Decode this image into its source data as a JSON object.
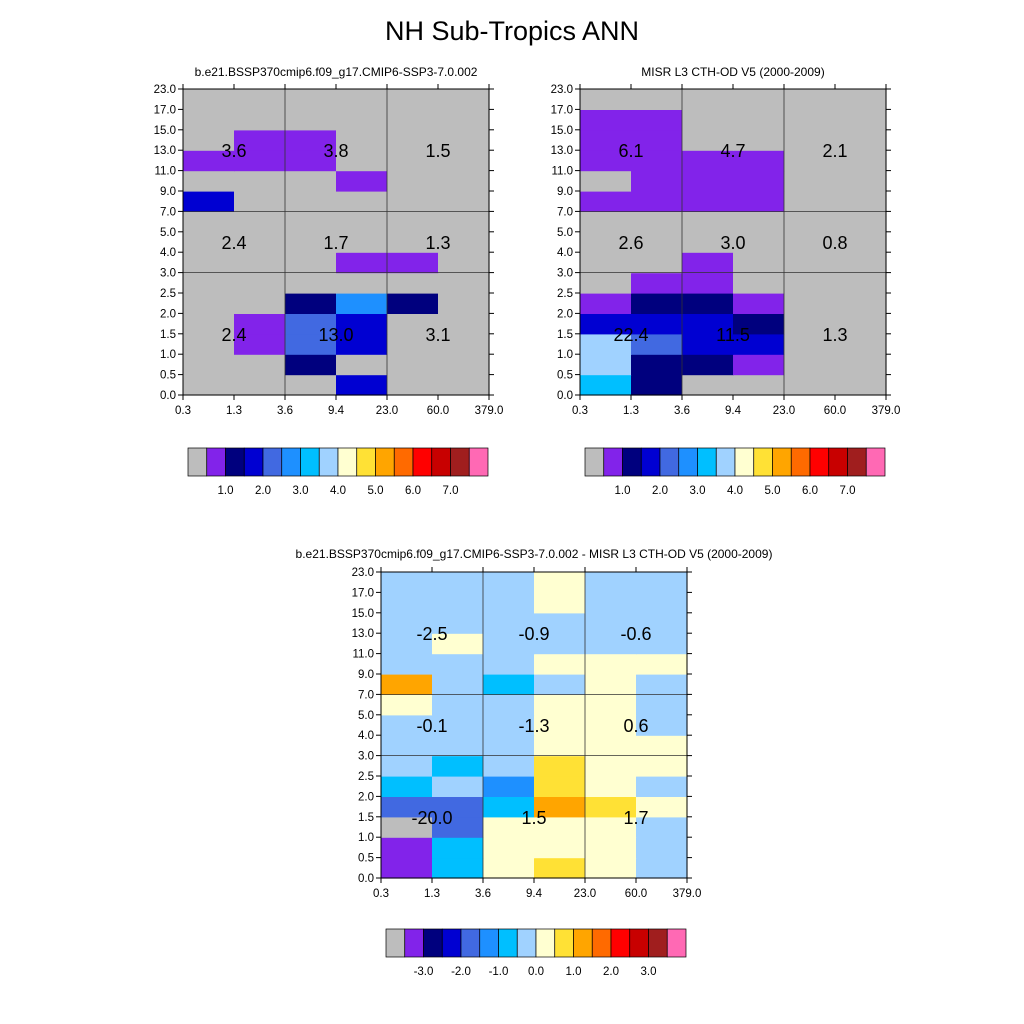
{
  "page_title": "NH Sub-Tropics ANN",
  "chart_data": [
    {
      "type": "heatmap",
      "title": "b.e21.BSSP370cmip6.f09_g17.CMIP6-SSP3-7.0.002",
      "x_ticks": [
        "0.3",
        "1.3",
        "3.6",
        "9.4",
        "23.0",
        "60.0",
        "379.0"
      ],
      "y_ticks": [
        "0.0",
        "0.5",
        "1.0",
        "1.5",
        "2.0",
        "2.5",
        "3.0",
        "4.0",
        "5.0",
        "7.0",
        "9.0",
        "11.0",
        "13.0",
        "15.0",
        "17.0",
        "23.0"
      ],
      "colorbar_labels": [
        "1.0",
        "2.0",
        "3.0",
        "4.0",
        "5.0",
        "6.0",
        "7.0"
      ],
      "colorbar_colors": [
        "#bdbdbd",
        "#8223ea",
        "#00007e",
        "#0000d2",
        "#4169e1",
        "#1e90ff",
        "#00bfff",
        "#a0d2ff",
        "#ffffd1",
        "#ffe135",
        "#ffa500",
        "#ff6a00",
        "#ff0000",
        "#c80000",
        "#a01e1e",
        "#ff69b4"
      ],
      "cells": [
        [
          0,
          0,
          0,
          3,
          0,
          0
        ],
        [
          0,
          0,
          2,
          0,
          0,
          0
        ],
        [
          0,
          1,
          4,
          3,
          0,
          0
        ],
        [
          0,
          1,
          4,
          3,
          0,
          0
        ],
        [
          0,
          0,
          2,
          5,
          2,
          0
        ],
        [
          0,
          0,
          0,
          0,
          0,
          0
        ],
        [
          0,
          0,
          0,
          1,
          1,
          0
        ],
        [
          0,
          0,
          0,
          0,
          0,
          0
        ],
        [
          0,
          0,
          0,
          0,
          0,
          0
        ],
        [
          3,
          0,
          0,
          0,
          0,
          0
        ],
        [
          0,
          0,
          0,
          1,
          0,
          0
        ],
        [
          1,
          1,
          1,
          0,
          0,
          0
        ],
        [
          0,
          1,
          1,
          0,
          0,
          0
        ],
        [
          0,
          0,
          0,
          0,
          0,
          0
        ],
        [
          0,
          0,
          0,
          0,
          0,
          0
        ]
      ],
      "block_values": [
        {
          "col": 0,
          "row": 0,
          "text": "2.4"
        },
        {
          "col": 1,
          "row": 0,
          "text": "13.0"
        },
        {
          "col": 2,
          "row": 0,
          "text": "3.1"
        },
        {
          "col": 0,
          "row": 1,
          "text": "2.4"
        },
        {
          "col": 1,
          "row": 1,
          "text": "1.7"
        },
        {
          "col": 2,
          "row": 1,
          "text": "1.3"
        },
        {
          "col": 0,
          "row": 2,
          "text": "3.6"
        },
        {
          "col": 1,
          "row": 2,
          "text": "3.8"
        },
        {
          "col": 2,
          "row": 2,
          "text": "1.5"
        }
      ]
    },
    {
      "type": "heatmap",
      "title": "MISR L3 CTH-OD V5 (2000-2009)",
      "x_ticks": [
        "0.3",
        "1.3",
        "3.6",
        "9.4",
        "23.0",
        "60.0",
        "379.0"
      ],
      "y_ticks": [
        "0.0",
        "0.5",
        "1.0",
        "1.5",
        "2.0",
        "2.5",
        "3.0",
        "4.0",
        "5.0",
        "7.0",
        "9.0",
        "11.0",
        "13.0",
        "15.0",
        "17.0",
        "23.0"
      ],
      "colorbar_labels": [
        "1.0",
        "2.0",
        "3.0",
        "4.0",
        "5.0",
        "6.0",
        "7.0"
      ],
      "colorbar_colors": [
        "#bdbdbd",
        "#8223ea",
        "#00007e",
        "#0000d2",
        "#4169e1",
        "#1e90ff",
        "#00bfff",
        "#a0d2ff",
        "#ffffd1",
        "#ffe135",
        "#ffa500",
        "#ff6a00",
        "#ff0000",
        "#c80000",
        "#a01e1e",
        "#ff69b4"
      ],
      "cells": [
        [
          6,
          2,
          0,
          0,
          0,
          0
        ],
        [
          7,
          2,
          2,
          1,
          0,
          0
        ],
        [
          7,
          4,
          3,
          3,
          0,
          0
        ],
        [
          3,
          3,
          3,
          2,
          0,
          0
        ],
        [
          1,
          2,
          2,
          1,
          0,
          0
        ],
        [
          0,
          1,
          1,
          0,
          0,
          0
        ],
        [
          0,
          0,
          1,
          0,
          0,
          0
        ],
        [
          0,
          0,
          0,
          0,
          0,
          0
        ],
        [
          0,
          0,
          0,
          0,
          0,
          0
        ],
        [
          1,
          1,
          1,
          1,
          0,
          0
        ],
        [
          0,
          1,
          1,
          1,
          0,
          0
        ],
        [
          1,
          1,
          1,
          1,
          0,
          0
        ],
        [
          1,
          1,
          0,
          0,
          0,
          0
        ],
        [
          1,
          1,
          0,
          0,
          0,
          0
        ],
        [
          0,
          0,
          0,
          0,
          0,
          0
        ]
      ],
      "block_values": [
        {
          "col": 0,
          "row": 0,
          "text": "22.4"
        },
        {
          "col": 1,
          "row": 0,
          "text": "11.5"
        },
        {
          "col": 2,
          "row": 0,
          "text": "1.3"
        },
        {
          "col": 0,
          "row": 1,
          "text": "2.6"
        },
        {
          "col": 1,
          "row": 1,
          "text": "3.0"
        },
        {
          "col": 2,
          "row": 1,
          "text": "0.8"
        },
        {
          "col": 0,
          "row": 2,
          "text": "6.1"
        },
        {
          "col": 1,
          "row": 2,
          "text": "4.7"
        },
        {
          "col": 2,
          "row": 2,
          "text": "2.1"
        }
      ]
    },
    {
      "type": "heatmap",
      "title": "b.e21.BSSP370cmip6.f09_g17.CMIP6-SSP3-7.0.002 - MISR L3 CTH-OD V5 (2000-2009)",
      "x_ticks": [
        "0.3",
        "1.3",
        "3.6",
        "9.4",
        "23.0",
        "60.0",
        "379.0"
      ],
      "y_ticks": [
        "0.0",
        "0.5",
        "1.0",
        "1.5",
        "2.0",
        "2.5",
        "3.0",
        "4.0",
        "5.0",
        "7.0",
        "9.0",
        "11.0",
        "13.0",
        "15.0",
        "17.0",
        "23.0"
      ],
      "colorbar_labels": [
        "-3.0",
        "-2.0",
        "-1.0",
        "0.0",
        "1.0",
        "2.0",
        "3.0"
      ],
      "colorbar_colors": [
        "#bdbdbd",
        "#8223ea",
        "#00007e",
        "#0000d2",
        "#4169e1",
        "#1e90ff",
        "#00bfff",
        "#a0d2ff",
        "#ffffd1",
        "#ffe135",
        "#ffa500",
        "#ff6a00",
        "#ff0000",
        "#c80000",
        "#a01e1e",
        "#ff69b4"
      ],
      "cells": [
        [
          1,
          6,
          8,
          9,
          8,
          7
        ],
        [
          1,
          6,
          8,
          8,
          8,
          7
        ],
        [
          0,
          4,
          8,
          8,
          8,
          7
        ],
        [
          4,
          4,
          6,
          10,
          9,
          8
        ],
        [
          6,
          7,
          5,
          9,
          8,
          7
        ],
        [
          7,
          6,
          7,
          9,
          8,
          8
        ],
        [
          7,
          7,
          7,
          8,
          8,
          8
        ],
        [
          7,
          7,
          7,
          8,
          8,
          7
        ],
        [
          8,
          7,
          7,
          8,
          8,
          7
        ],
        [
          10,
          7,
          6,
          7,
          8,
          7
        ],
        [
          7,
          7,
          7,
          8,
          8,
          8
        ],
        [
          7,
          8,
          7,
          7,
          7,
          7
        ],
        [
          7,
          7,
          7,
          7,
          7,
          7
        ],
        [
          7,
          7,
          7,
          8,
          7,
          7
        ],
        [
          7,
          7,
          7,
          8,
          7,
          7
        ]
      ],
      "block_values": [
        {
          "col": 0,
          "row": 0,
          "text": "-20.0"
        },
        {
          "col": 1,
          "row": 0,
          "text": "1.5"
        },
        {
          "col": 2,
          "row": 0,
          "text": "1.7"
        },
        {
          "col": 0,
          "row": 1,
          "text": "-0.1"
        },
        {
          "col": 1,
          "row": 1,
          "text": "-1.3"
        },
        {
          "col": 2,
          "row": 1,
          "text": "0.6"
        },
        {
          "col": 0,
          "row": 2,
          "text": "-2.5"
        },
        {
          "col": 1,
          "row": 2,
          "text": "-0.9"
        },
        {
          "col": 2,
          "row": 2,
          "text": "-0.6"
        }
      ]
    }
  ]
}
